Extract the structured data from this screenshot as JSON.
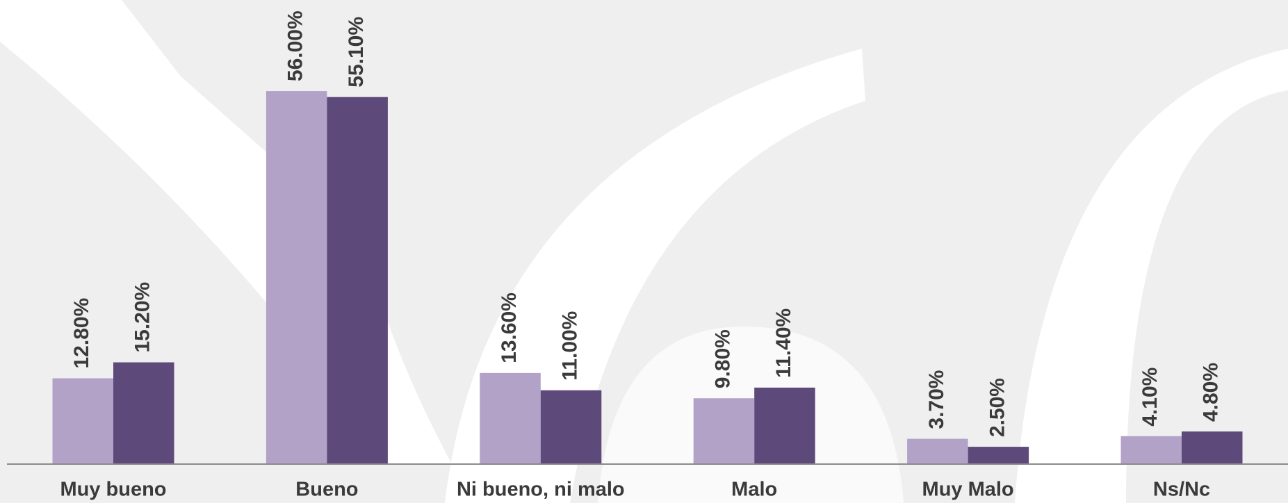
{
  "chart_data": {
    "type": "bar",
    "categories": [
      "Muy bueno",
      "Bueno",
      "Ni bueno, ni malo",
      "Malo",
      "Muy Malo",
      "Ns/Nc"
    ],
    "series": [
      {
        "color": "#b3a2c8",
        "values": [
          12.8,
          56.0,
          13.6,
          9.8,
          3.7,
          4.1
        ],
        "value_labels": [
          "12.80%",
          "56.00%",
          "13.60%",
          "9.80%",
          "3.70%",
          "4.10%"
        ]
      },
      {
        "color": "#5e4a7a",
        "values": [
          15.2,
          55.1,
          11.0,
          11.4,
          2.5,
          4.8
        ],
        "value_labels": [
          "15.20%",
          "55.10%",
          "11.00%",
          "11.40%",
          "2.50%",
          "4.80%"
        ]
      }
    ]
  }
}
